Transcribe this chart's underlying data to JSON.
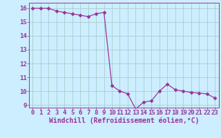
{
  "x": [
    0,
    1,
    2,
    3,
    4,
    5,
    6,
    7,
    8,
    9,
    10,
    11,
    12,
    13,
    14,
    15,
    16,
    17,
    18,
    19,
    20,
    21,
    22,
    23
  ],
  "y": [
    16.0,
    16.0,
    16.0,
    15.8,
    15.7,
    15.6,
    15.5,
    15.4,
    15.6,
    15.7,
    10.4,
    10.0,
    9.8,
    8.7,
    9.2,
    9.3,
    10.0,
    10.5,
    10.1,
    10.0,
    9.9,
    9.85,
    9.8,
    9.5
  ],
  "line_color": "#993399",
  "marker": "D",
  "marker_size": 2.5,
  "linewidth": 0.9,
  "background_color": "#cceeff",
  "grid_color": "#aacccc",
  "xlabel": "Windchill (Refroidissement éolien,°C)",
  "label_color": "#993399",
  "tick_color": "#993399",
  "xlabel_fontsize": 7,
  "tick_fontsize": 6.5,
  "ylim": [
    8.8,
    16.4
  ],
  "xlim": [
    -0.5,
    23.5
  ],
  "yticks": [
    9,
    10,
    11,
    12,
    13,
    14,
    15,
    16
  ],
  "xticks": [
    0,
    1,
    2,
    3,
    4,
    5,
    6,
    7,
    8,
    9,
    10,
    11,
    12,
    13,
    14,
    15,
    16,
    17,
    18,
    19,
    20,
    21,
    22,
    23
  ]
}
